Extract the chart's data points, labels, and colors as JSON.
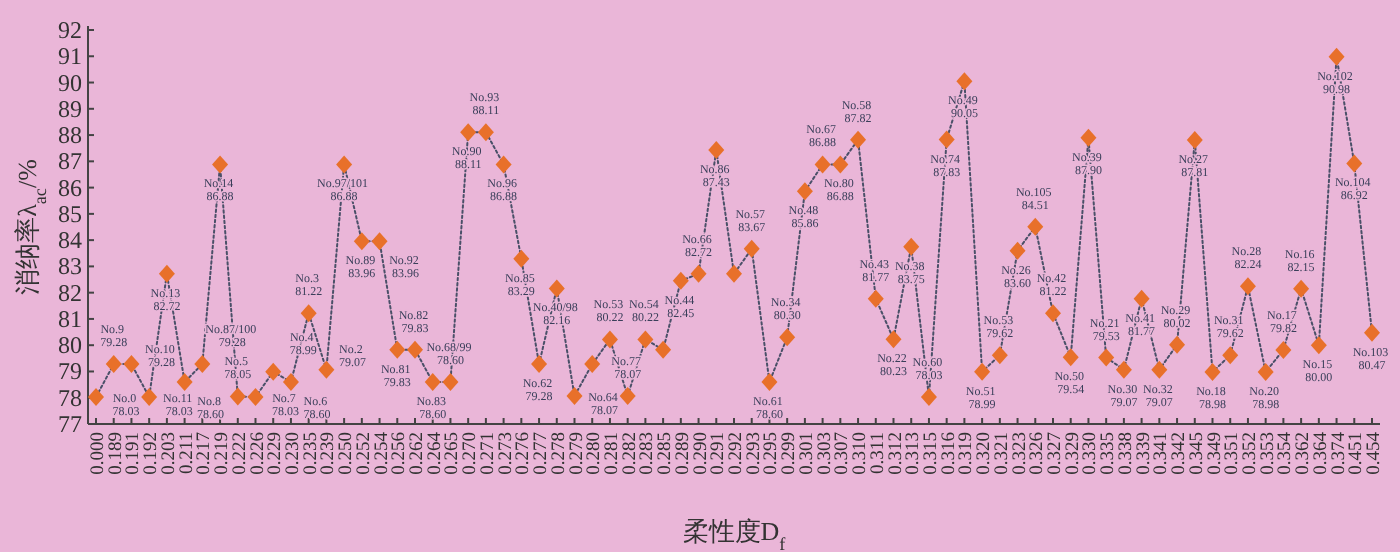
{
  "chart_data": {
    "type": "line",
    "xlabel": "柔性度D$_{f}$",
    "ylabel": "消纳率λ$_{ac}$/%",
    "categories": [
      "0.000",
      "0.189",
      "0.191",
      "0.192",
      "0.203",
      "0.211",
      "0.217",
      "0.219",
      "0.222",
      "0.226",
      "0.229",
      "0.230",
      "0.235",
      "0.239",
      "0.250",
      "0.252",
      "0.254",
      "0.256",
      "0.262",
      "0.264",
      "0.265",
      "0.270",
      "0.271",
      "0.273",
      "0.276",
      "0.277",
      "0.278",
      "0.279",
      "0.280",
      "0.281",
      "0.282",
      "0.283",
      "0.285",
      "0.289",
      "0.290",
      "0.291",
      "0.292",
      "0.293",
      "0.295",
      "0.299",
      "0.301",
      "0.303",
      "0.307",
      "0.310",
      "0.311",
      "0.312",
      "0.313",
      "0.315",
      "0.316",
      "0.319",
      "0.320",
      "0.321",
      "0.323",
      "0.326",
      "0.327",
      "0.329",
      "0.330",
      "0.335",
      "0.338",
      "0.339",
      "0.341",
      "0.342",
      "0.345",
      "0.349",
      "0.351",
      "0.352",
      "0.353",
      "0.354",
      "0.362",
      "0.364",
      "0.374",
      "0.451",
      "0.454"
    ],
    "series": [
      {
        "color": "#e8702a",
        "values": [
          78.03,
          79.28,
          79.28,
          78.03,
          82.72,
          78.6,
          79.28,
          86.88,
          78.05,
          78.03,
          78.99,
          78.6,
          81.22,
          79.07,
          86.88,
          83.96,
          83.96,
          79.83,
          79.83,
          78.6,
          78.6,
          88.11,
          88.11,
          86.88,
          83.29,
          79.28,
          82.16,
          78.07,
          79.28,
          80.22,
          78.07,
          80.22,
          79.83,
          82.45,
          82.72,
          87.43,
          82.72,
          83.67,
          78.6,
          80.3,
          85.86,
          86.88,
          86.88,
          87.82,
          81.77,
          80.23,
          83.75,
          78.03,
          87.83,
          90.05,
          78.99,
          79.62,
          83.6,
          84.51,
          81.22,
          79.54,
          87.9,
          79.53,
          79.07,
          81.77,
          79.07,
          80.02,
          87.81,
          78.98,
          79.62,
          82.24,
          78.98,
          79.82,
          82.15,
          80.0,
          90.98,
          86.92,
          80.47
        ],
        "value_labels": [
          "No.0 78.03",
          "No.9 79.28",
          "No.10 79.28",
          "No.11 78.03",
          "No.13 82.72",
          "No.8 78.60",
          "No.87/100 79.28",
          "No.14 86.88",
          "No.5 78.05",
          "No.7 78.03",
          "No.4 78.99",
          "No.6 78.60",
          "No.3 81.22",
          "No.2 79.07",
          "No.97/101 86.88",
          "No.89 83.96",
          "No.92 83.96",
          "No.81 79.83",
          "No.82 79.83",
          "No.83 78.60",
          "No.68/99 78.60",
          "No.90 88.11",
          "No.93 88.11",
          "No.96 86.88",
          "No.85 83.29",
          "No.62 79.28",
          "No.40/98 82.16",
          "No.64 78.07",
          null,
          "No.53 80.22",
          "No.77 78.07",
          "No.54 80.22",
          null,
          "No.44 82.45",
          "No.66 82.72",
          "No.86 87.43",
          null,
          "No.57 83.67",
          "No.61 78.60",
          "No.34 80.30",
          "No.48 85.86",
          "No.67 86.88",
          "No.80 86.88",
          "No.58 87.82",
          "No.43 81.77",
          "No.22 80.23",
          "No.38 83.75",
          "No.60 78.03",
          "No.74 87.83",
          "No.49 90.05",
          "No.51 78.99",
          "No.53 79.62",
          "No.26 83.60",
          "No.105 84.51",
          "No.42 81.22",
          "No.50 79.54",
          "No.39 87.90",
          "No.21 79.53",
          "No.30 79.07",
          "No.41 81.77",
          "No.32 79.07",
          "No.29 80.02",
          "No.27 87.81",
          "No.18 78.98",
          "No.31 79.62",
          "No.28 82.24",
          "No.20 78.98",
          "No.17 79.82",
          "No.16 82.15",
          "No.15 80.00",
          "No.102 90.98",
          "No.104 86.92",
          "No.103 80.47"
        ]
      }
    ],
    "ylim": [
      77,
      92
    ],
    "yticks": [
      77,
      78,
      79,
      80,
      81,
      82,
      83,
      84,
      85,
      86,
      87,
      88,
      89,
      90,
      91,
      92
    ],
    "marker": "diamond",
    "line_style": "dotted",
    "grid": false
  }
}
